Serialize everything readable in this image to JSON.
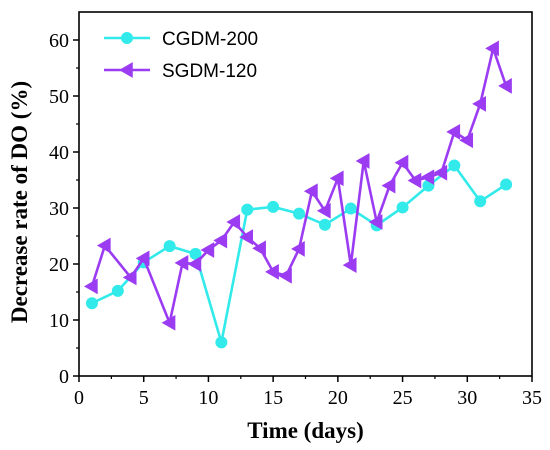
{
  "chart_data": {
    "type": "line",
    "xlabel": "Time (days)",
    "ylabel": "Decrease rate of DO (%)",
    "xlim": [
      0,
      35
    ],
    "ylim": [
      0,
      65
    ],
    "xticks": [
      0,
      5,
      10,
      15,
      20,
      25,
      30,
      35
    ],
    "yticks": [
      0,
      10,
      20,
      30,
      40,
      50,
      60
    ],
    "grid": false,
    "legend_position": "top-left",
    "series": [
      {
        "name": "CGDM-200",
        "color": "#33eaea",
        "marker": "circle",
        "x": [
          1,
          3,
          5,
          7,
          9,
          11,
          13,
          15,
          17,
          19,
          21,
          23,
          25,
          27,
          29,
          31,
          33
        ],
        "y": [
          13,
          15.2,
          20.3,
          23.2,
          21.8,
          6,
          29.7,
          30.2,
          29,
          27,
          29.9,
          26.9,
          30.1,
          34,
          37.6,
          31.2,
          34.2
        ]
      },
      {
        "name": "SGDM-120",
        "color": "#9b3cf2",
        "marker": "triangle-left",
        "x": [
          1,
          2,
          4,
          5,
          7,
          8,
          9,
          10,
          11,
          12,
          13,
          14,
          15,
          16,
          17,
          18,
          19,
          20,
          21,
          22,
          23,
          24,
          25,
          26,
          27,
          28,
          29,
          30,
          31,
          32,
          33
        ],
        "y": [
          16,
          23.3,
          17.6,
          21,
          9.5,
          20.2,
          20,
          22.5,
          24.2,
          27.5,
          24.8,
          22.8,
          18.6,
          17.9,
          22.7,
          33,
          29.5,
          35.3,
          19.8,
          38.4,
          27.5,
          34,
          38.1,
          34.9,
          35.5,
          36.3,
          43.6,
          42.1,
          48.6,
          58.5,
          51.8
        ]
      }
    ]
  }
}
